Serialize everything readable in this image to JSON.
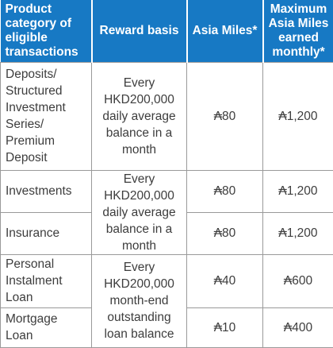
{
  "headers": {
    "category": "Product category of eligible transactions",
    "basis": "Reward basis",
    "asia_miles": "Asia Miles*",
    "maximum": "Maximum Asia Miles earned monthly*"
  },
  "rows": [
    {
      "category": "Deposits/ Structured Investment Series/ Premium Deposit",
      "asia_miles": "₳80",
      "maximum": "₳1,200"
    },
    {
      "category": "Investments",
      "asia_miles": "₳80",
      "maximum": "₳1,200"
    },
    {
      "category": "Insurance",
      "asia_miles": "₳80",
      "maximum": "₳1,200"
    },
    {
      "category": "Personal Instalment Loan",
      "asia_miles": "₳40",
      "maximum": "₳600"
    },
    {
      "category": "Mortgage Loan",
      "asia_miles": "₳10",
      "maximum": "₳400"
    }
  ],
  "bases": {
    "daily_single": "Every HKD200,000 daily average balance in a month",
    "daily_shared": "Every HKD200,000 daily average balance in a month",
    "month_end": "Every HKD200,000 month-end outstanding loan balance"
  },
  "colors": {
    "header_bg": "#1779c4",
    "header_text": "#ffffff",
    "body_text": "#3d3d3d",
    "border": "#9a9a9a"
  }
}
